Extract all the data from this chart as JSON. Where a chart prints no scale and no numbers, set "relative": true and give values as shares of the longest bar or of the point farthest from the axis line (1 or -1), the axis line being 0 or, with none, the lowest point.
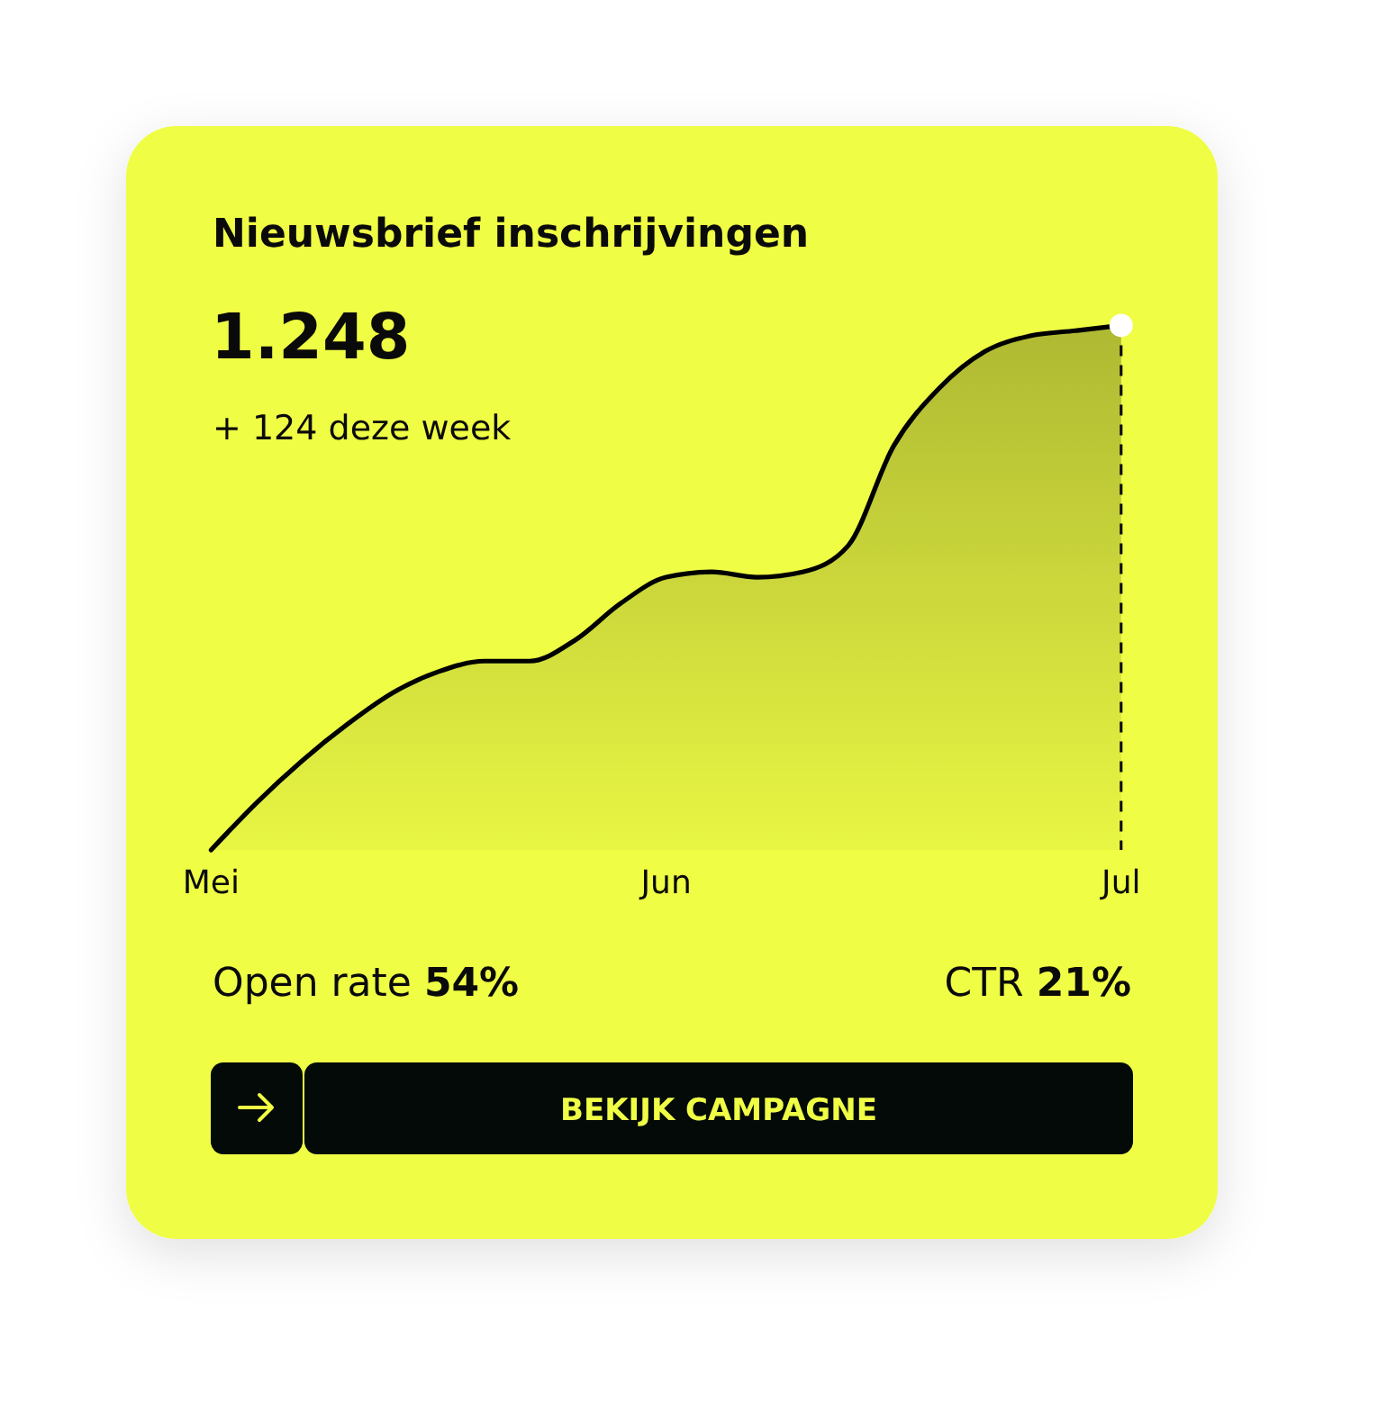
{
  "chart_data": {
    "type": "area",
    "title": "Nieuwsbrief inschrijvingen",
    "subtitle": "1.248",
    "annotations": [
      "+ 124 deze week",
      "Open rate 54%",
      "CTR 21%",
      "BEKIJK CAMPAGNE"
    ],
    "categories": [
      "Mei",
      null,
      null,
      null,
      null,
      null,
      null,
      null,
      null,
      null,
      "Jun",
      null,
      null,
      null,
      null,
      null,
      null,
      null,
      null,
      null,
      "Jul"
    ],
    "relative": true,
    "series": [
      {
        "color": "#000000",
        "values": [
          0,
          0.09,
          0.17,
          0.24,
          0.3,
          0.34,
          0.36,
          0.36,
          0.4,
          0.47,
          0.52,
          0.53,
          0.52,
          0.53,
          0.58,
          0.77,
          0.88,
          0.95,
          0.98,
          0.99,
          1
        ]
      },
      {
        "type": "scatter",
        "marker": "circle",
        "color": "#ffffff",
        "values": [
          null,
          null,
          null,
          null,
          null,
          null,
          null,
          null,
          null,
          null,
          null,
          null,
          null,
          null,
          null,
          null,
          null,
          null,
          null,
          null,
          1
        ]
      }
    ],
    "ref_lines": [
      {
        "axis": "x",
        "value": "Jul",
        "color": "#000000",
        "line_style": "dashed"
      }
    ]
  }
}
